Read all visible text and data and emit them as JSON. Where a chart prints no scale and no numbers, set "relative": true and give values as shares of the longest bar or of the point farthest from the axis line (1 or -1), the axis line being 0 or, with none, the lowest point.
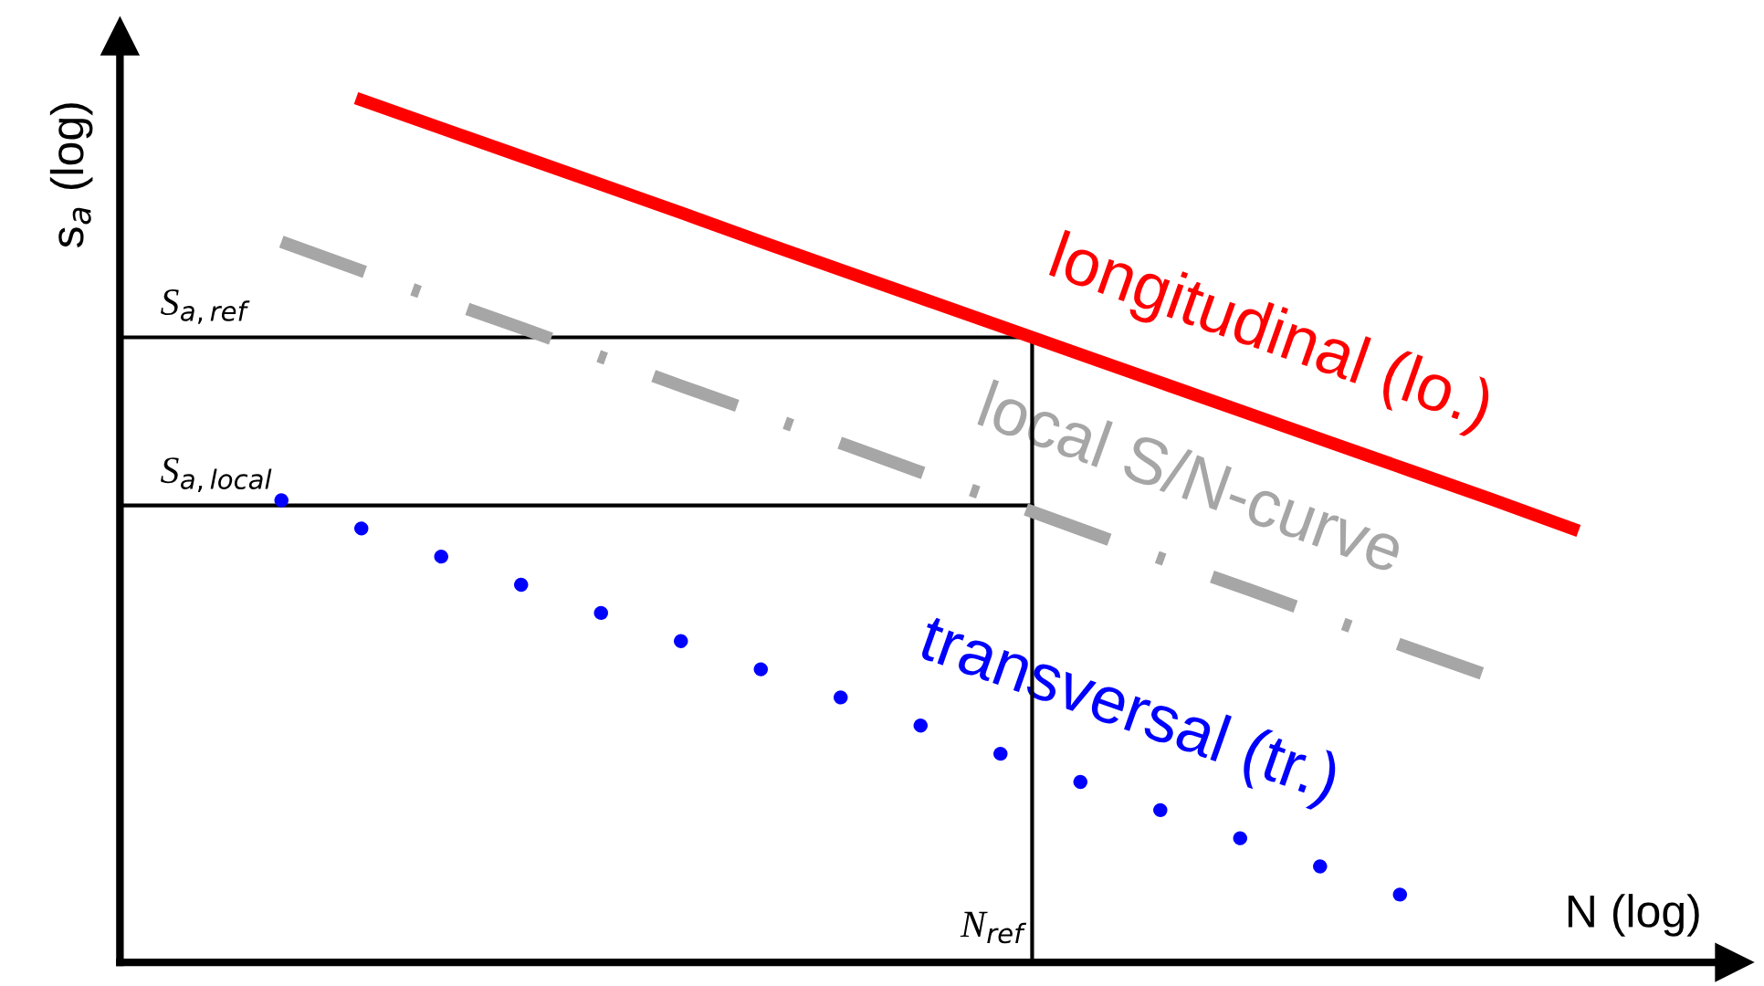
{
  "chart_data": {
    "type": "line",
    "relative": true,
    "xlabel": "N (log)",
    "ylabel": "s$_{a}$ (log)",
    "categories": [
      null,
      null,
      null,
      null,
      null,
      null,
      null,
      null,
      null,
      null,
      null,
      null,
      null,
      null,
      null,
      null,
      null,
      null,
      null,
      null,
      null
    ],
    "series": [
      {
        "name": "longitudinal (lo.)",
        "color": "#ff0000",
        "line_style": "solid",
        "values": [
          null,
          null,
          null,
          1,
          0.967,
          0.934,
          0.901,
          0.868,
          0.834,
          0.801,
          0.768,
          0.735,
          0.702,
          0.669,
          0.636,
          0.603,
          0.57,
          0.537,
          0.503,
          null,
          null
        ]
      },
      {
        "name": "local S/N-curve",
        "color": "#a6a6a6",
        "line_style": "dashdot",
        "values": [
          null,
          null,
          0.836,
          0.802,
          0.768,
          0.735,
          0.701,
          0.667,
          0.634,
          0.6,
          0.566,
          0.533,
          0.499,
          0.465,
          0.432,
          0.398,
          0.364,
          0.331,
          null,
          null,
          null
        ]
      },
      {
        "name": "transversal (tr.)",
        "color": "#0000ff",
        "line_style": "dotted",
        "values": [
          null,
          null,
          0.536,
          0.503,
          0.47,
          0.437,
          0.404,
          0.371,
          0.338,
          0.305,
          0.272,
          0.239,
          0.206,
          0.173,
          0.14,
          0.107,
          0.074,
          null,
          null,
          null,
          null
        ]
      }
    ],
    "ref_lines": [
      {
        "axis": "y",
        "value": 0.725,
        "label": "S$_{a,ref}$",
        "color": "#000000"
      },
      {
        "axis": "y",
        "value": 0.53,
        "label": "S$_{a,local}$",
        "color": "#000000"
      }
    ],
    "annotations": [
      "N$_{ref}$"
    ],
    "grid": false,
    "legend": false
  }
}
